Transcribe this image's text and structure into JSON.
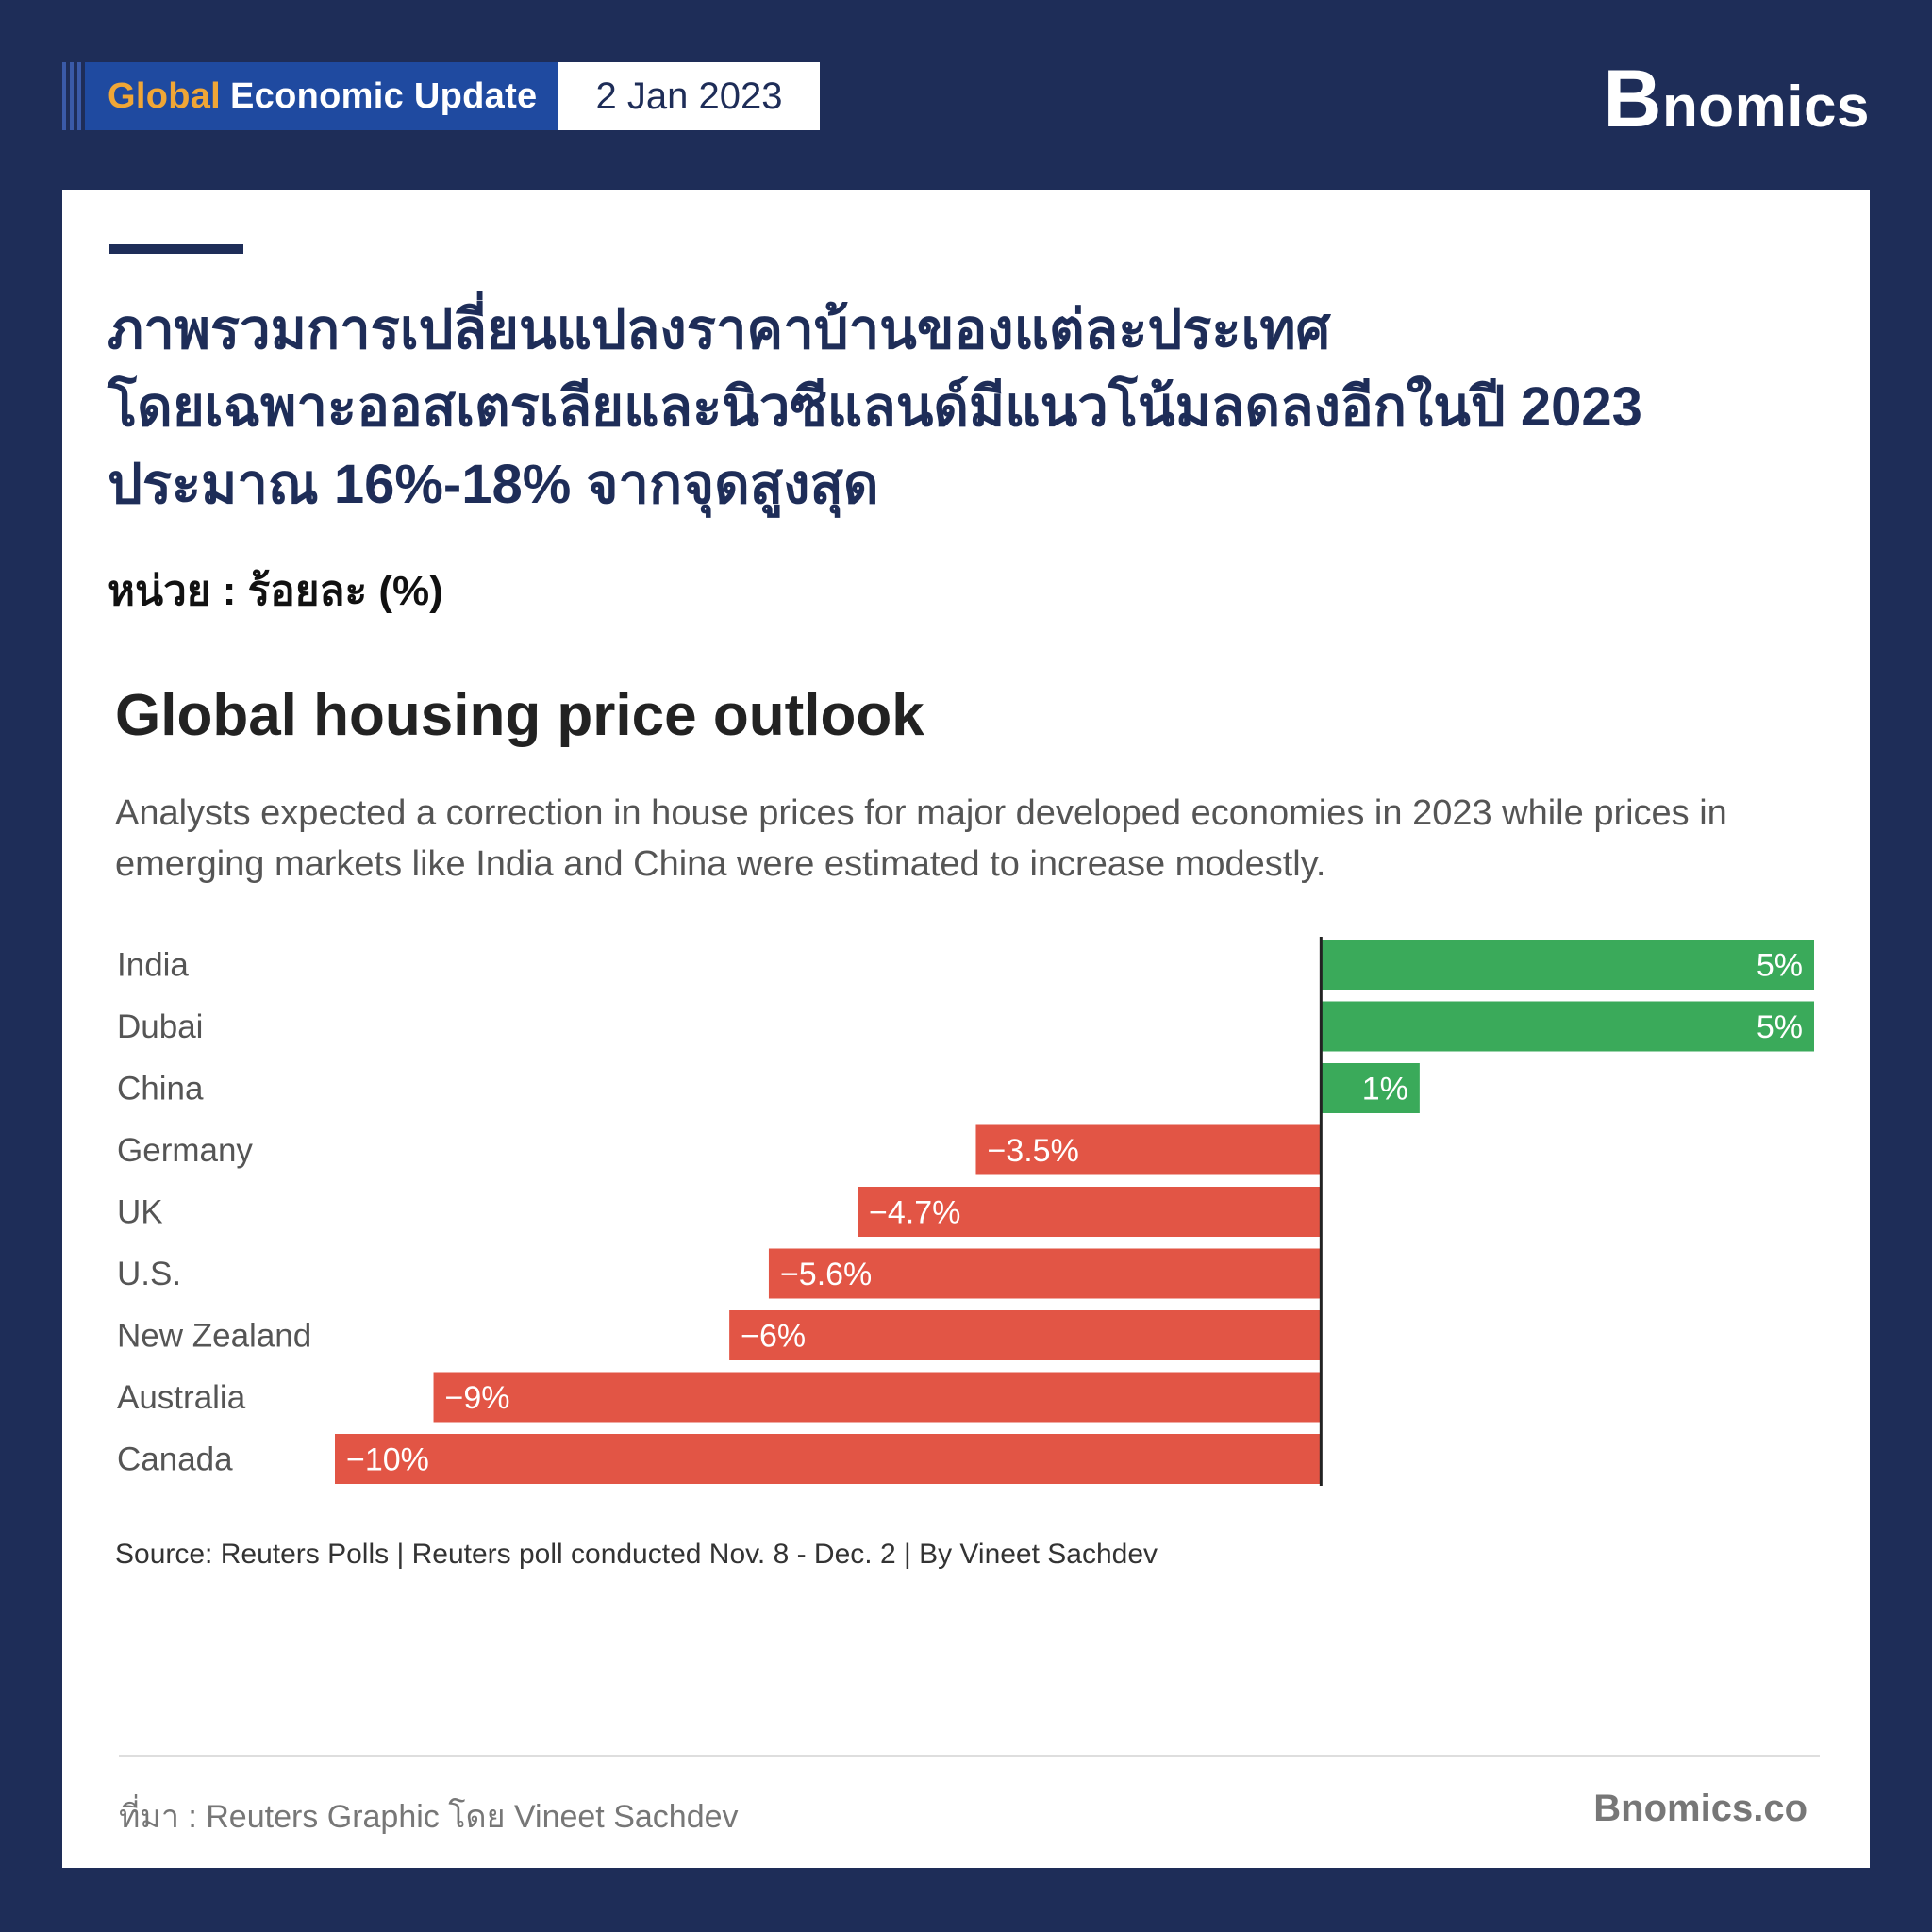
{
  "header": {
    "tag_accent": "Global",
    "tag_title": "Economic Update",
    "date": "2 Jan 2023",
    "brand_initial": "B",
    "brand_rest": "nomics"
  },
  "headline": {
    "line1": "ภาพรวมการเปลี่ยนแปลงราคาบ้านของแต่ละประเทศ",
    "line2": "โดยเฉพาะออสเตรเลียและนิวซีแลนด์มีแนวโน้มลดลงอีกในปี 2023",
    "line3": "ประมาณ 16%-18% จากจุดสูงสุด"
  },
  "unit_label": "หน่วย : ร้อยละ (%)",
  "chart_data": {
    "type": "bar",
    "orientation": "horizontal",
    "title": "Global housing price outlook",
    "subtitle": "Analysts expected a correction in house prices for major developed economies in 2023 while prices in emerging markets like India and China were estimated to increase modestly.",
    "categories": [
      "India",
      "Dubai",
      "China",
      "Germany",
      "UK",
      "U.S.",
      "New Zealand",
      "Australia",
      "Canada"
    ],
    "values": [
      5,
      5,
      1,
      -3.5,
      -4.7,
      -5.6,
      -6,
      -9,
      -10
    ],
    "value_labels": [
      "5%",
      "5%",
      "1%",
      "−3.5%",
      "−4.7%",
      "−5.6%",
      "−6%",
      "−9%",
      "−10%"
    ],
    "xlim": [
      -10,
      5
    ],
    "colors": {
      "positive": "#3aaa5a",
      "negative": "#e25545"
    },
    "source": "Source: Reuters Polls | Reuters poll conducted Nov. 8 - Dec. 2 | By Vineet Sachdev"
  },
  "footer": {
    "source": "ที่มา : Reuters Graphic โดย Vineet Sachdev",
    "brand": "Bnomics.co"
  }
}
